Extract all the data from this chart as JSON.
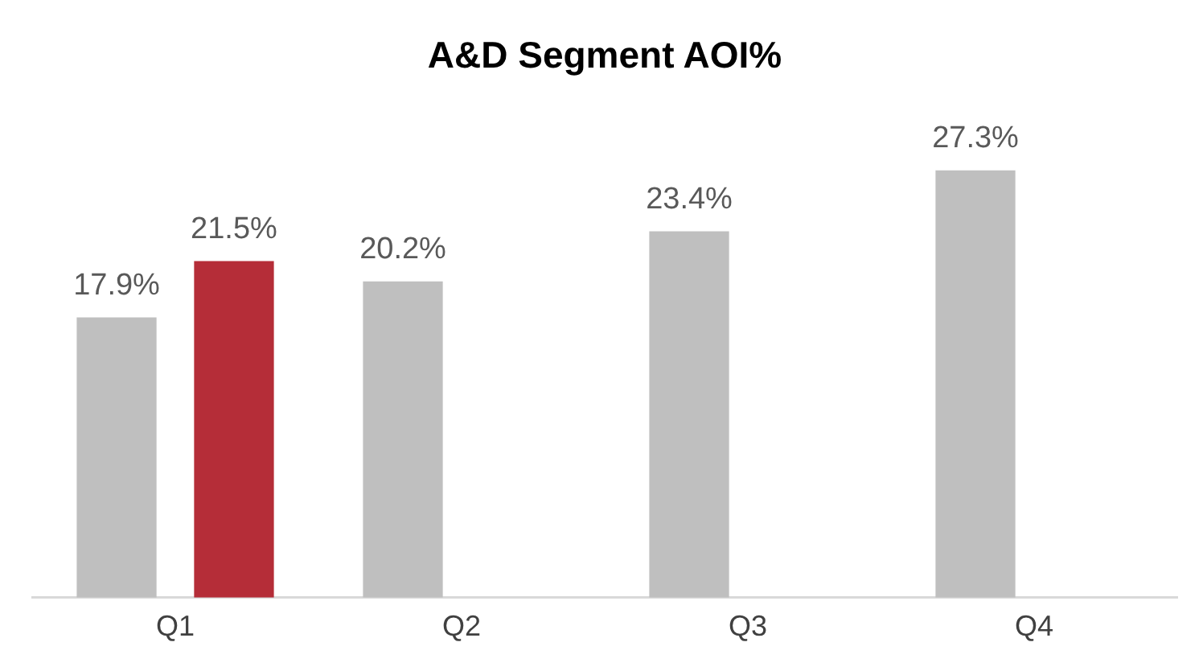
{
  "chart_data": {
    "type": "bar",
    "title": "A&D Segment AOI%",
    "categories": [
      "Q1",
      "Q2",
      "Q3",
      "Q4"
    ],
    "series": [
      {
        "color": "#bfbfbf",
        "values": [
          17.9,
          20.2,
          23.4,
          27.3
        ],
        "value_labels": [
          "17.9%",
          "20.2%",
          "23.4%",
          "27.3%"
        ]
      },
      {
        "color": "#b52d38",
        "values": [
          21.5,
          null,
          null,
          null
        ],
        "value_labels": [
          "21.5%",
          null,
          null,
          null
        ]
      }
    ],
    "grid": false,
    "legend": false
  }
}
